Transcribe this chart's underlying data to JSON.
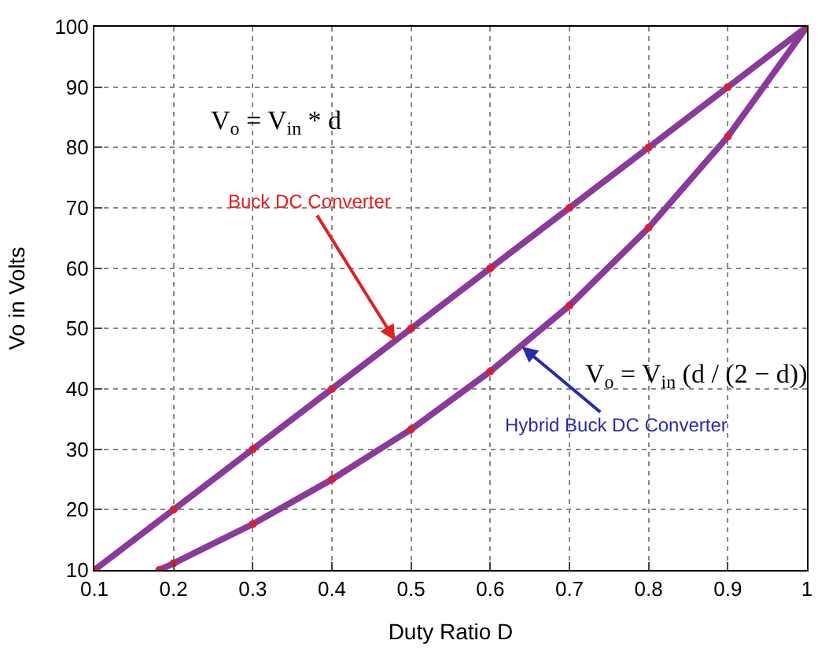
{
  "chart_data": {
    "type": "line",
    "xlabel": "Duty Ratio D",
    "ylabel": "Vo in Volts",
    "series": [
      {
        "color": "#8a3a9a",
        "x": [
          0.1,
          0.2,
          0.3,
          0.4,
          0.5,
          0.6,
          0.7,
          0.8,
          0.9,
          1.0
        ],
        "values": [
          10,
          20,
          30,
          40,
          50,
          60,
          70,
          80,
          90,
          100
        ]
      },
      {
        "color": "#8a3a9a",
        "x": [
          0.182,
          0.2,
          0.3,
          0.4,
          0.5,
          0.6,
          0.7,
          0.8,
          0.9,
          1.0
        ],
        "values": [
          10.0,
          11.1,
          17.6,
          25.0,
          33.3,
          42.9,
          53.8,
          66.7,
          81.8,
          100
        ]
      }
    ],
    "annotations": [
      {
        "text": "Buck DC Converter",
        "x": 0.48,
        "y": 48
      },
      {
        "text": "Hybrid Buck DC Converter",
        "x": 0.64,
        "y": 47
      },
      "V$_{o}$ = V$_{in}$ * d",
      "V$_{o}$ = V$_{in}$ (d / (2 − d))"
    ],
    "xlim": [
      0.1,
      1
    ],
    "ylim": [
      10,
      100
    ],
    "xticks": [
      0.1,
      0.2,
      0.3,
      0.4,
      0.5,
      0.6,
      0.7,
      0.8,
      0.9,
      1
    ],
    "yticks": [
      10,
      20,
      30,
      40,
      50,
      60,
      70,
      80,
      90,
      100
    ],
    "grid": true,
    "marker": "circle",
    "line_style": "solid"
  }
}
